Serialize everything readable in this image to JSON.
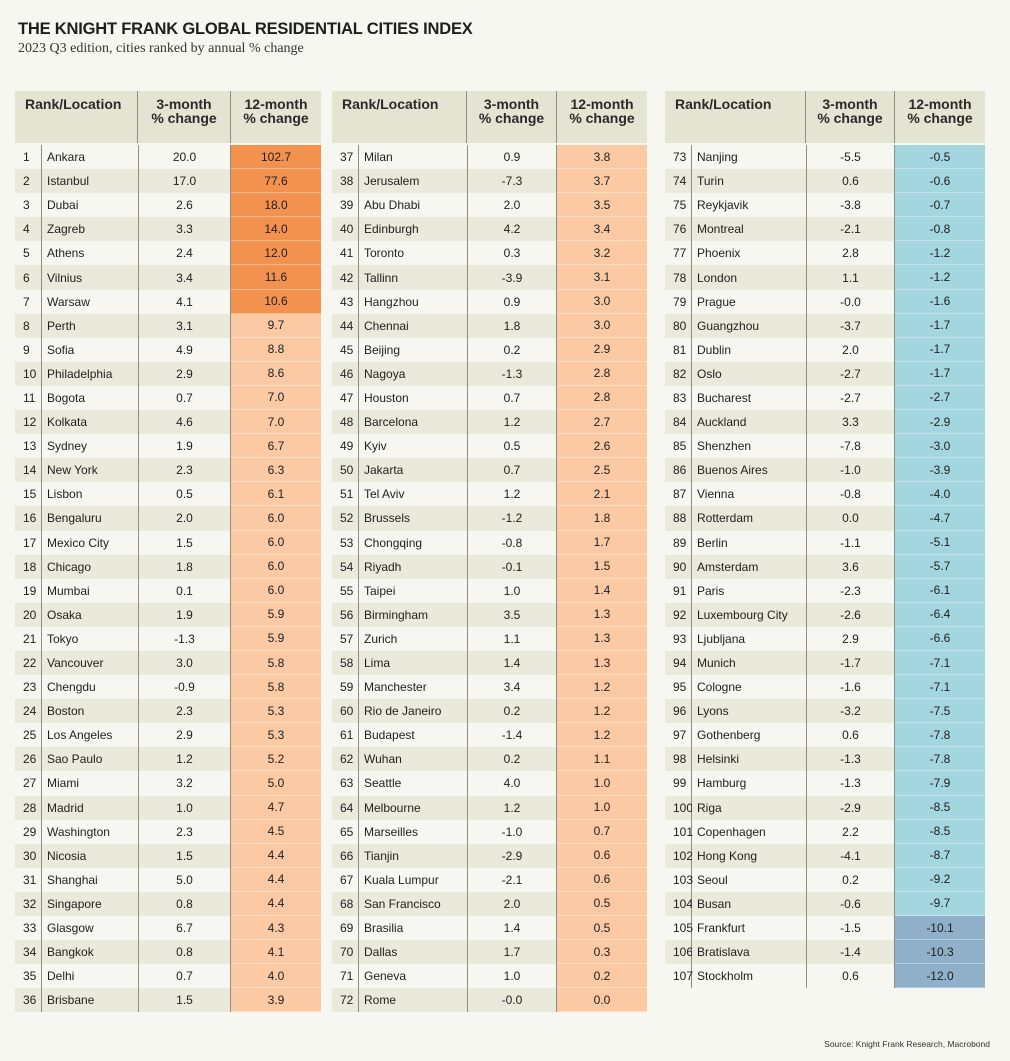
{
  "title": "THE KNIGHT FRANK GLOBAL RESIDENTIAL CITIES INDEX",
  "subtitle": "2023 Q3 edition, cities ranked by annual % change",
  "source": "Source: Knight Frank Research, Macrobond",
  "colors": {
    "strong_positive": "#f3924f",
    "positive": "#fbc9a4",
    "negative": "#a4d6df",
    "strong_negative": "#8fb0c8",
    "header_bg": "#e4e4d2"
  },
  "chart_data": {
    "type": "table",
    "title": "THE KNIGHT FRANK GLOBAL RESIDENTIAL CITIES INDEX",
    "columns": [
      "Rank/Location",
      "3-month\n% change",
      "12-month\n% change"
    ],
    "column_headers": {
      "rank_location": "Rank/Location",
      "three_month_line1": "3-month",
      "three_month_line2": "% change",
      "twelve_month_line1": "12-month",
      "twelve_month_line2": "% change"
    },
    "rows": [
      {
        "rank": "1",
        "city": "Ankara",
        "m3": "20.0",
        "m12": "102.7",
        "tone": "strong_positive"
      },
      {
        "rank": "2",
        "city": "Istanbul",
        "m3": "17.0",
        "m12": "77.6",
        "tone": "strong_positive"
      },
      {
        "rank": "3",
        "city": "Dubai",
        "m3": "2.6",
        "m12": "18.0",
        "tone": "strong_positive"
      },
      {
        "rank": "4",
        "city": "Zagreb",
        "m3": "3.3",
        "m12": "14.0",
        "tone": "strong_positive"
      },
      {
        "rank": "5",
        "city": "Athens",
        "m3": "2.4",
        "m12": "12.0",
        "tone": "strong_positive"
      },
      {
        "rank": "6",
        "city": "Vilnius",
        "m3": "3.4",
        "m12": "11.6",
        "tone": "strong_positive"
      },
      {
        "rank": "7",
        "city": "Warsaw",
        "m3": "4.1",
        "m12": "10.6",
        "tone": "strong_positive"
      },
      {
        "rank": "8",
        "city": "Perth",
        "m3": "3.1",
        "m12": "9.7",
        "tone": "positive"
      },
      {
        "rank": "9",
        "city": "Sofia",
        "m3": "4.9",
        "m12": "8.8",
        "tone": "positive"
      },
      {
        "rank": "10",
        "city": "Philadelphia",
        "m3": "2.9",
        "m12": "8.6",
        "tone": "positive"
      },
      {
        "rank": "11",
        "city": "Bogota",
        "m3": "0.7",
        "m12": "7.0",
        "tone": "positive"
      },
      {
        "rank": "12",
        "city": "Kolkata",
        "m3": "4.6",
        "m12": "7.0",
        "tone": "positive"
      },
      {
        "rank": "13",
        "city": "Sydney",
        "m3": "1.9",
        "m12": "6.7",
        "tone": "positive"
      },
      {
        "rank": "14",
        "city": "New York",
        "m3": "2.3",
        "m12": "6.3",
        "tone": "positive"
      },
      {
        "rank": "15",
        "city": "Lisbon",
        "m3": "0.5",
        "m12": "6.1",
        "tone": "positive"
      },
      {
        "rank": "16",
        "city": "Bengaluru",
        "m3": "2.0",
        "m12": "6.0",
        "tone": "positive"
      },
      {
        "rank": "17",
        "city": "Mexico City",
        "m3": "1.5",
        "m12": "6.0",
        "tone": "positive"
      },
      {
        "rank": "18",
        "city": "Chicago",
        "m3": "1.8",
        "m12": "6.0",
        "tone": "positive"
      },
      {
        "rank": "19",
        "city": "Mumbai",
        "m3": "0.1",
        "m12": "6.0",
        "tone": "positive"
      },
      {
        "rank": "20",
        "city": "Osaka",
        "m3": "1.9",
        "m12": "5.9",
        "tone": "positive"
      },
      {
        "rank": "21",
        "city": "Tokyo",
        "m3": "-1.3",
        "m12": "5.9",
        "tone": "positive"
      },
      {
        "rank": "22",
        "city": "Vancouver",
        "m3": "3.0",
        "m12": "5.8",
        "tone": "positive"
      },
      {
        "rank": "23",
        "city": "Chengdu",
        "m3": "-0.9",
        "m12": "5.8",
        "tone": "positive"
      },
      {
        "rank": "24",
        "city": "Boston",
        "m3": "2.3",
        "m12": "5.3",
        "tone": "positive"
      },
      {
        "rank": "25",
        "city": "Los Angeles",
        "m3": "2.9",
        "m12": "5.3",
        "tone": "positive"
      },
      {
        "rank": "26",
        "city": "Sao Paulo",
        "m3": "1.2",
        "m12": "5.2",
        "tone": "positive"
      },
      {
        "rank": "27",
        "city": "Miami",
        "m3": "3.2",
        "m12": "5.0",
        "tone": "positive"
      },
      {
        "rank": "28",
        "city": "Madrid",
        "m3": "1.0",
        "m12": "4.7",
        "tone": "positive"
      },
      {
        "rank": "29",
        "city": "Washington",
        "m3": "2.3",
        "m12": "4.5",
        "tone": "positive"
      },
      {
        "rank": "30",
        "city": "Nicosia",
        "m3": "1.5",
        "m12": "4.4",
        "tone": "positive"
      },
      {
        "rank": "31",
        "city": "Shanghai",
        "m3": "5.0",
        "m12": "4.4",
        "tone": "positive"
      },
      {
        "rank": "32",
        "city": "Singapore",
        "m3": "0.8",
        "m12": "4.4",
        "tone": "positive"
      },
      {
        "rank": "33",
        "city": "Glasgow",
        "m3": "6.7",
        "m12": "4.3",
        "tone": "positive"
      },
      {
        "rank": "34",
        "city": "Bangkok",
        "m3": "0.8",
        "m12": "4.1",
        "tone": "positive"
      },
      {
        "rank": "35",
        "city": "Delhi",
        "m3": "0.7",
        "m12": "4.0",
        "tone": "positive"
      },
      {
        "rank": "36",
        "city": "Brisbane",
        "m3": "1.5",
        "m12": "3.9",
        "tone": "positive"
      },
      {
        "rank": "37",
        "city": "Milan",
        "m3": "0.9",
        "m12": "3.8",
        "tone": "positive"
      },
      {
        "rank": "38",
        "city": "Jerusalem",
        "m3": "-7.3",
        "m12": "3.7",
        "tone": "positive"
      },
      {
        "rank": "39",
        "city": "Abu Dhabi",
        "m3": "2.0",
        "m12": "3.5",
        "tone": "positive"
      },
      {
        "rank": "40",
        "city": "Edinburgh",
        "m3": "4.2",
        "m12": "3.4",
        "tone": "positive"
      },
      {
        "rank": "41",
        "city": "Toronto",
        "m3": "0.3",
        "m12": "3.2",
        "tone": "positive"
      },
      {
        "rank": "42",
        "city": "Tallinn",
        "m3": "-3.9",
        "m12": "3.1",
        "tone": "positive"
      },
      {
        "rank": "43",
        "city": "Hangzhou",
        "m3": "0.9",
        "m12": "3.0",
        "tone": "positive"
      },
      {
        "rank": "44",
        "city": "Chennai",
        "m3": "1.8",
        "m12": "3.0",
        "tone": "positive"
      },
      {
        "rank": "45",
        "city": "Beijing",
        "m3": "0.2",
        "m12": "2.9",
        "tone": "positive"
      },
      {
        "rank": "46",
        "city": "Nagoya",
        "m3": "-1.3",
        "m12": "2.8",
        "tone": "positive"
      },
      {
        "rank": "47",
        "city": "Houston",
        "m3": "0.7",
        "m12": "2.8",
        "tone": "positive"
      },
      {
        "rank": "48",
        "city": "Barcelona",
        "m3": "1.2",
        "m12": "2.7",
        "tone": "positive"
      },
      {
        "rank": "49",
        "city": "Kyiv",
        "m3": "0.5",
        "m12": "2.6",
        "tone": "positive"
      },
      {
        "rank": "50",
        "city": "Jakarta",
        "m3": "0.7",
        "m12": "2.5",
        "tone": "positive"
      },
      {
        "rank": "51",
        "city": "Tel Aviv",
        "m3": "1.2",
        "m12": "2.1",
        "tone": "positive"
      },
      {
        "rank": "52",
        "city": "Brussels",
        "m3": "-1.2",
        "m12": "1.8",
        "tone": "positive"
      },
      {
        "rank": "53",
        "city": "Chongqing",
        "m3": "-0.8",
        "m12": "1.7",
        "tone": "positive"
      },
      {
        "rank": "54",
        "city": "Riyadh",
        "m3": "-0.1",
        "m12": "1.5",
        "tone": "positive"
      },
      {
        "rank": "55",
        "city": "Taipei",
        "m3": "1.0",
        "m12": "1.4",
        "tone": "positive"
      },
      {
        "rank": "56",
        "city": "Birmingham",
        "m3": "3.5",
        "m12": "1.3",
        "tone": "positive"
      },
      {
        "rank": "57",
        "city": "Zurich",
        "m3": "1.1",
        "m12": "1.3",
        "tone": "positive"
      },
      {
        "rank": "58",
        "city": "Lima",
        "m3": "1.4",
        "m12": "1.3",
        "tone": "positive"
      },
      {
        "rank": "59",
        "city": "Manchester",
        "m3": "3.4",
        "m12": "1.2",
        "tone": "positive"
      },
      {
        "rank": "60",
        "city": "Rio de Janeiro",
        "m3": "0.2",
        "m12": "1.2",
        "tone": "positive"
      },
      {
        "rank": "61",
        "city": "Budapest",
        "m3": "-1.4",
        "m12": "1.2",
        "tone": "positive"
      },
      {
        "rank": "62",
        "city": "Wuhan",
        "m3": "0.2",
        "m12": "1.1",
        "tone": "positive"
      },
      {
        "rank": "63",
        "city": "Seattle",
        "m3": "4.0",
        "m12": "1.0",
        "tone": "positive"
      },
      {
        "rank": "64",
        "city": "Melbourne",
        "m3": "1.2",
        "m12": "1.0",
        "tone": "positive"
      },
      {
        "rank": "65",
        "city": "Marseilles",
        "m3": "-1.0",
        "m12": "0.7",
        "tone": "positive"
      },
      {
        "rank": "66",
        "city": "Tianjin",
        "m3": "-2.9",
        "m12": "0.6",
        "tone": "positive"
      },
      {
        "rank": "67",
        "city": "Kuala Lumpur",
        "m3": "-2.1",
        "m12": "0.6",
        "tone": "positive"
      },
      {
        "rank": "68",
        "city": "San Francisco",
        "m3": "2.0",
        "m12": "0.5",
        "tone": "positive"
      },
      {
        "rank": "69",
        "city": "Brasilia",
        "m3": "1.4",
        "m12": "0.5",
        "tone": "positive"
      },
      {
        "rank": "70",
        "city": "Dallas",
        "m3": "1.7",
        "m12": "0.3",
        "tone": "positive"
      },
      {
        "rank": "71",
        "city": "Geneva",
        "m3": "1.0",
        "m12": "0.2",
        "tone": "positive"
      },
      {
        "rank": "72",
        "city": "Rome",
        "m3": "-0.0",
        "m12": "0.0",
        "tone": "positive"
      },
      {
        "rank": "73",
        "city": "Nanjing",
        "m3": "-5.5",
        "m12": "-0.5",
        "tone": "negative"
      },
      {
        "rank": "74",
        "city": "Turin",
        "m3": "0.6",
        "m12": "-0.6",
        "tone": "negative"
      },
      {
        "rank": "75",
        "city": "Reykjavik",
        "m3": "-3.8",
        "m12": "-0.7",
        "tone": "negative"
      },
      {
        "rank": "76",
        "city": "Montreal",
        "m3": "-2.1",
        "m12": "-0.8",
        "tone": "negative"
      },
      {
        "rank": "77",
        "city": "Phoenix",
        "m3": "2.8",
        "m12": "-1.2",
        "tone": "negative"
      },
      {
        "rank": "78",
        "city": "London",
        "m3": "1.1",
        "m12": "-1.2",
        "tone": "negative"
      },
      {
        "rank": "79",
        "city": "Prague",
        "m3": "-0.0",
        "m12": "-1.6",
        "tone": "negative"
      },
      {
        "rank": "80",
        "city": "Guangzhou",
        "m3": "-3.7",
        "m12": "-1.7",
        "tone": "negative"
      },
      {
        "rank": "81",
        "city": "Dublin",
        "m3": "2.0",
        "m12": "-1.7",
        "tone": "negative"
      },
      {
        "rank": "82",
        "city": "Oslo",
        "m3": "-2.7",
        "m12": "-1.7",
        "tone": "negative"
      },
      {
        "rank": "83",
        "city": "Bucharest",
        "m3": "-2.7",
        "m12": "-2.7",
        "tone": "negative"
      },
      {
        "rank": "84",
        "city": "Auckland",
        "m3": "3.3",
        "m12": "-2.9",
        "tone": "negative"
      },
      {
        "rank": "85",
        "city": "Shenzhen",
        "m3": "-7.8",
        "m12": "-3.0",
        "tone": "negative"
      },
      {
        "rank": "86",
        "city": "Buenos Aires",
        "m3": "-1.0",
        "m12": "-3.9",
        "tone": "negative"
      },
      {
        "rank": "87",
        "city": "Vienna",
        "m3": "-0.8",
        "m12": "-4.0",
        "tone": "negative"
      },
      {
        "rank": "88",
        "city": "Rotterdam",
        "m3": "0.0",
        "m12": "-4.7",
        "tone": "negative"
      },
      {
        "rank": "89",
        "city": "Berlin",
        "m3": "-1.1",
        "m12": "-5.1",
        "tone": "negative"
      },
      {
        "rank": "90",
        "city": "Amsterdam",
        "m3": "3.6",
        "m12": "-5.7",
        "tone": "negative"
      },
      {
        "rank": "91",
        "city": "Paris",
        "m3": "-2.3",
        "m12": "-6.1",
        "tone": "negative"
      },
      {
        "rank": "92",
        "city": "Luxembourg City",
        "m3": "-2.6",
        "m12": "-6.4",
        "tone": "negative"
      },
      {
        "rank": "93",
        "city": "Ljubljana",
        "m3": "2.9",
        "m12": "-6.6",
        "tone": "negative"
      },
      {
        "rank": "94",
        "city": "Munich",
        "m3": "-1.7",
        "m12": "-7.1",
        "tone": "negative"
      },
      {
        "rank": "95",
        "city": "Cologne",
        "m3": "-1.6",
        "m12": "-7.1",
        "tone": "negative"
      },
      {
        "rank": "96",
        "city": "Lyons",
        "m3": "-3.2",
        "m12": "-7.5",
        "tone": "negative"
      },
      {
        "rank": "97",
        "city": "Gothenberg",
        "m3": "0.6",
        "m12": "-7.8",
        "tone": "negative"
      },
      {
        "rank": "98",
        "city": "Helsinki",
        "m3": "-1.3",
        "m12": "-7.8",
        "tone": "negative"
      },
      {
        "rank": "99",
        "city": "Hamburg",
        "m3": "-1.3",
        "m12": "-7.9",
        "tone": "negative"
      },
      {
        "rank": "100",
        "city": "Riga",
        "m3": "-2.9",
        "m12": "-8.5",
        "tone": "negative"
      },
      {
        "rank": "101",
        "city": "Copenhagen",
        "m3": "2.2",
        "m12": "-8.5",
        "tone": "negative"
      },
      {
        "rank": "102",
        "city": "Hong Kong",
        "m3": "-4.1",
        "m12": "-8.7",
        "tone": "negative"
      },
      {
        "rank": "103",
        "city": "Seoul",
        "m3": "0.2",
        "m12": "-9.2",
        "tone": "negative"
      },
      {
        "rank": "104",
        "city": "Busan",
        "m3": "-0.6",
        "m12": "-9.7",
        "tone": "negative"
      },
      {
        "rank": "105",
        "city": "Frankfurt",
        "m3": "-1.5",
        "m12": "-10.1",
        "tone": "strong_negative"
      },
      {
        "rank": "106",
        "city": "Bratislava",
        "m3": "-1.4",
        "m12": "-10.3",
        "tone": "strong_negative"
      },
      {
        "rank": "107",
        "city": "Stockholm",
        "m3": "0.6",
        "m12": "-12.0",
        "tone": "strong_negative"
      }
    ]
  }
}
